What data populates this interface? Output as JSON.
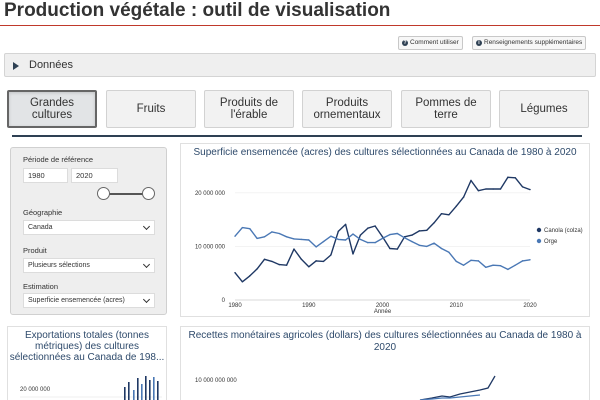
{
  "header": {
    "title": "Production végétale : outil de visualisation",
    "help_button": "Comment utiliser",
    "info_button": "Renseignements supplémentaires"
  },
  "data_panel": {
    "label": "Données"
  },
  "crop_tabs": [
    {
      "label": "Grandes cultures",
      "active": true
    },
    {
      "label": "Fruits"
    },
    {
      "label": "Produits de l'érable"
    },
    {
      "label": "Produits ornementaux"
    },
    {
      "label": "Pommes de terre"
    },
    {
      "label": "Légumes"
    }
  ],
  "filters": {
    "period_label": "Période de référence",
    "start_year": "1980",
    "end_year": "2020",
    "geography_label": "Géographie",
    "geography_value": "Canada",
    "product_label": "Produit",
    "product_value": "Plusieurs sélections",
    "estimate_label": "Estimation",
    "estimate_value": "Superficie ensemencée (acres)"
  },
  "colors": {
    "canola": "#1f3864",
    "orge": "#4a78b5",
    "accent": "#c0392b"
  },
  "charts": {
    "area_title": "Superficie ensemencée (acres) des cultures sélectionnées au Canada de 1980 à 2020",
    "exports_title": "Exportations totales (tonnes métriques) des cultures sélectionnées au Canada de 198...",
    "receipts_title_line1": "Recettes monétaires agricoles (dollars) des cultures sélectionnées au Canada de 1980 à",
    "receipts_title_line2": "2020",
    "exports_tick": "20 000 000",
    "receipts_tick": "10 000 000 000"
  },
  "chart_data": [
    {
      "type": "line",
      "title": "Superficie ensemencée (acres) des cultures sélectionnées au Canada de 1980 à 2020",
      "xlabel": "Année",
      "ylabel": "",
      "xlim": [
        1980,
        2020
      ],
      "ylim": [
        0,
        25000000
      ],
      "yticks": [
        0,
        10000000,
        20000000
      ],
      "ytick_labels": [
        "0",
        "10 000 000",
        "20 000 000"
      ],
      "xticks": [
        1980,
        1990,
        2000,
        2010,
        2020
      ],
      "legend": "right",
      "x": [
        1980,
        1981,
        1982,
        1983,
        1984,
        1985,
        1986,
        1987,
        1988,
        1989,
        1990,
        1991,
        1992,
        1993,
        1994,
        1995,
        1996,
        1997,
        1998,
        1999,
        2000,
        2001,
        2002,
        2003,
        2004,
        2005,
        2006,
        2007,
        2008,
        2009,
        2010,
        2011,
        2012,
        2013,
        2014,
        2015,
        2016,
        2017,
        2018,
        2019,
        2020
      ],
      "series": [
        {
          "name": "Canola (colza)",
          "values": [
            5100000,
            3400000,
            4500000,
            5800000,
            7600000,
            7200000,
            6600000,
            6500000,
            9500000,
            7600000,
            6200000,
            7300000,
            7200000,
            8400000,
            12800000,
            14100000,
            8600000,
            12100000,
            13400000,
            13800000,
            11800000,
            9600000,
            9500000,
            11800000,
            12100000,
            12900000,
            13000000,
            14400000,
            16100000,
            15900000,
            17500000,
            19200000,
            22300000,
            20400000,
            20700000,
            20700000,
            20700000,
            22900000,
            22800000,
            21100000,
            20600000
          ]
        },
        {
          "name": "Orge",
          "values": [
            11900000,
            13500000,
            13300000,
            11500000,
            11800000,
            12700000,
            12400000,
            11800000,
            11400000,
            11300000,
            11200000,
            9900000,
            10900000,
            11900000,
            11300000,
            11200000,
            12300000,
            11300000,
            10700000,
            10700000,
            11500000,
            12200000,
            12400000,
            11600000,
            10900000,
            10200000,
            10000000,
            10600000,
            9600000,
            8900000,
            7200000,
            6500000,
            7400000,
            7300000,
            6100000,
            6500000,
            6400000,
            5700000,
            6500000,
            7300000,
            7500000
          ]
        }
      ]
    },
    {
      "type": "bar",
      "title": "Exportations totales (tonnes métriques) des cultures sélectionnées au Canada de 198...",
      "yticks": [
        20000000
      ],
      "ytick_labels": [
        "20 000 000"
      ]
    },
    {
      "type": "line",
      "title": "Recettes monétaires agricoles (dollars) des cultures sélectionnées au Canada de 1980 à 2020",
      "yticks": [
        10000000000
      ],
      "ytick_labels": [
        "10 000 000 000"
      ]
    }
  ]
}
